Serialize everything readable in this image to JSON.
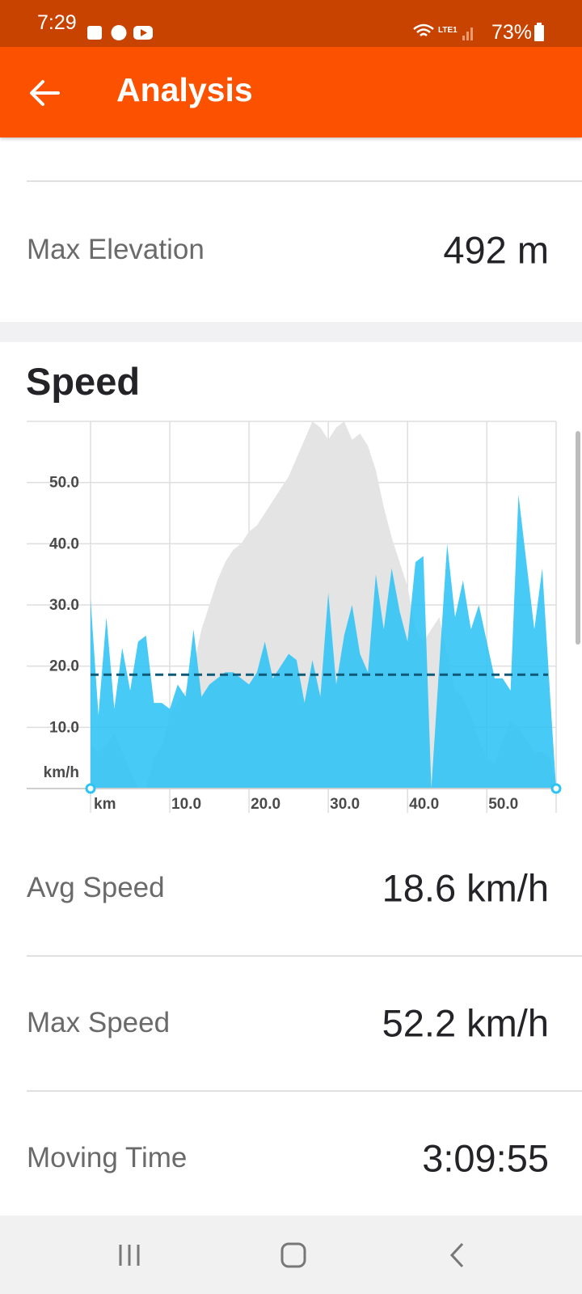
{
  "status_bar": {
    "time": "7:29",
    "battery": "73%"
  },
  "app_bar": {
    "title": "Analysis"
  },
  "elevation_row": {
    "label": "Max Elevation",
    "value": "492 m"
  },
  "speed_title": "Speed",
  "chart_data": {
    "type": "area",
    "xlabel": "km",
    "ylabel": "km/h",
    "x": [
      0,
      1,
      2,
      3,
      4,
      5,
      6,
      7,
      8,
      9,
      10,
      11,
      12,
      13,
      14,
      15,
      16,
      17,
      18,
      19,
      20,
      21,
      22,
      23,
      24,
      25,
      26,
      27,
      28,
      29,
      30,
      31,
      32,
      33,
      34,
      35,
      36,
      37,
      38,
      39,
      40,
      41,
      42,
      43,
      44,
      45,
      46,
      47,
      48,
      49,
      50,
      51,
      52,
      53,
      54,
      55,
      56,
      57,
      58,
      58.75
    ],
    "series": [
      {
        "color": "#e4e4e4",
        "values": [
          7,
          6,
          7,
          9,
          6,
          3,
          0,
          0,
          5,
          7,
          12,
          14,
          16,
          20,
          26,
          30,
          34,
          37,
          39,
          40,
          42,
          43,
          45,
          47,
          49,
          51,
          54,
          57,
          60,
          59,
          57,
          59,
          60,
          57,
          58,
          56,
          52,
          46,
          41,
          37,
          33,
          26,
          24,
          26,
          28,
          22,
          16,
          15,
          12,
          8,
          5,
          4,
          8,
          11,
          10,
          8,
          6,
          6,
          5,
          0
        ]
      },
      {
        "color": "#2ec3f5",
        "values": [
          31,
          12,
          28,
          13,
          23,
          16,
          24,
          25,
          14,
          14,
          13,
          17,
          15,
          26,
          15,
          17,
          18,
          19,
          19,
          18,
          17,
          19,
          24,
          18,
          20,
          22,
          21,
          14,
          21,
          15,
          32,
          17,
          25,
          30,
          22,
          19,
          35,
          26,
          36,
          29,
          24,
          37,
          38,
          0,
          20,
          40,
          28,
          34,
          26,
          30,
          24,
          18,
          18,
          16,
          48,
          37,
          26,
          36,
          15,
          0
        ]
      }
    ],
    "reference_line": 18.6,
    "reference_color": "#0e5a78",
    "xlim": [
      0,
      58.75
    ],
    "ylim": [
      0,
      60
    ],
    "xticks": [
      {
        "value": 10,
        "label": "10.0"
      },
      {
        "value": 20,
        "label": "20.0"
      },
      {
        "value": 30,
        "label": "30.0"
      },
      {
        "value": 40,
        "label": "40.0"
      },
      {
        "value": 50,
        "label": "50.0"
      }
    ],
    "yticks": [
      {
        "value": 10,
        "label": "10.0"
      },
      {
        "value": 20,
        "label": "20.0"
      },
      {
        "value": 30,
        "label": "30.0"
      },
      {
        "value": 40,
        "label": "40.0"
      },
      {
        "value": 50,
        "label": "50.0"
      }
    ],
    "grid": true
  },
  "speed_rows": [
    {
      "label": "Avg Speed",
      "value": "18.6 km/h"
    },
    {
      "label": "Max Speed",
      "value": "52.2 km/h"
    },
    {
      "label": "Moving Time",
      "value": "3:09:55"
    }
  ]
}
